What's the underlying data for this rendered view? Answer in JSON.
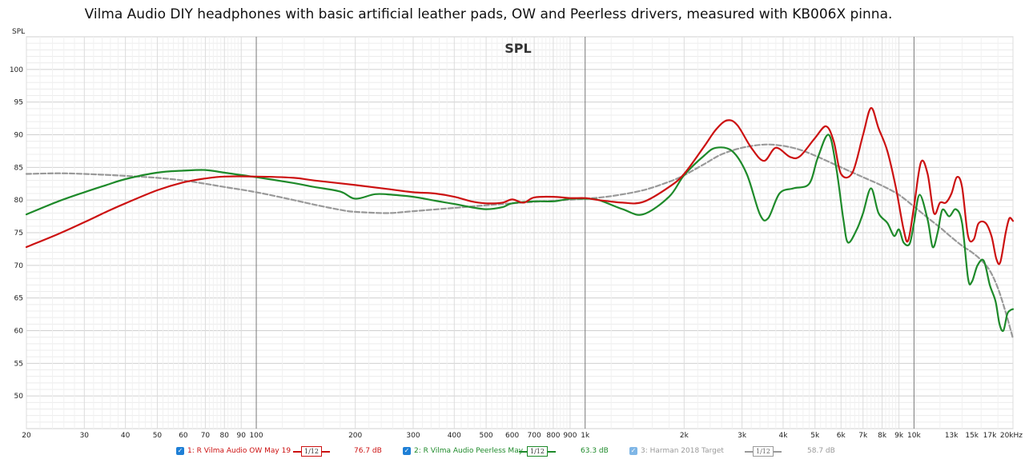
{
  "title": "Vilma Audio DIY headphones with basic artificial leather pads, OW and Peerless drivers, measured with KB006X pinna.",
  "legend": [
    {
      "label": "1: R Vilma Audio OW May 19",
      "smoothing": "1/12",
      "level": "76.7 dB",
      "color": "#cc1111",
      "checkbox_color": "#1e7fd6"
    },
    {
      "label": "2: R Vilma Audio Peerless May",
      "smoothing": "1/12",
      "level": "63.3 dB",
      "color": "#1e8a2a",
      "checkbox_color": "#1e7fd6"
    },
    {
      "label": "3: Harman 2018 Target",
      "smoothing": "1/12",
      "level": "58.7 dB",
      "color": "#999999",
      "checkbox_color": "#7fb6e6"
    }
  ],
  "chart_data": {
    "type": "line",
    "title": "SPL",
    "ylabel": "SPL",
    "xlabel": "",
    "xscale": "log",
    "xlim": [
      20,
      20000
    ],
    "ylim": [
      45,
      105
    ],
    "yticks": [
      50,
      55,
      60,
      65,
      70,
      75,
      80,
      85,
      90,
      95,
      100
    ],
    "xticks": [
      {
        "v": 20,
        "label": "20"
      },
      {
        "v": 30,
        "label": "30"
      },
      {
        "v": 40,
        "label": "40"
      },
      {
        "v": 50,
        "label": "50"
      },
      {
        "v": 60,
        "label": "60"
      },
      {
        "v": 70,
        "label": "70"
      },
      {
        "v": 80,
        "label": "80"
      },
      {
        "v": 90,
        "label": "90"
      },
      {
        "v": 100,
        "label": "100"
      },
      {
        "v": 200,
        "label": "200"
      },
      {
        "v": 300,
        "label": "300"
      },
      {
        "v": 400,
        "label": "400"
      },
      {
        "v": 500,
        "label": "500"
      },
      {
        "v": 600,
        "label": "600"
      },
      {
        "v": 700,
        "label": "700"
      },
      {
        "v": 800,
        "label": "800"
      },
      {
        "v": 900,
        "label": "900"
      },
      {
        "v": 1000,
        "label": "1k"
      },
      {
        "v": 2000,
        "label": "2k"
      },
      {
        "v": 3000,
        "label": "3k"
      },
      {
        "v": 4000,
        "label": "4k"
      },
      {
        "v": 5000,
        "label": "5k"
      },
      {
        "v": 6000,
        "label": "6k"
      },
      {
        "v": 7000,
        "label": "7k"
      },
      {
        "v": 8000,
        "label": "8k"
      },
      {
        "v": 9000,
        "label": "9k"
      },
      {
        "v": 10000,
        "label": "10k"
      },
      {
        "v": 13000,
        "label": "13k"
      },
      {
        "v": 15000,
        "label": "15k"
      },
      {
        "v": 17000,
        "label": "17k"
      },
      {
        "v": 20000,
        "label": "20kHz"
      }
    ],
    "major_x": [
      100,
      1000,
      10000
    ],
    "series": [
      {
        "name": "1: R Vilma Audio OW May 19",
        "color": "#cc1111",
        "dashed": false,
        "points": [
          [
            20,
            72.8
          ],
          [
            25,
            74.8
          ],
          [
            30,
            76.6
          ],
          [
            35,
            78.2
          ],
          [
            40,
            79.5
          ],
          [
            50,
            81.5
          ],
          [
            60,
            82.7
          ],
          [
            70,
            83.3
          ],
          [
            80,
            83.6
          ],
          [
            100,
            83.6
          ],
          [
            130,
            83.4
          ],
          [
            150,
            83.0
          ],
          [
            200,
            82.3
          ],
          [
            250,
            81.7
          ],
          [
            300,
            81.2
          ],
          [
            350,
            81.0
          ],
          [
            400,
            80.5
          ],
          [
            450,
            79.8
          ],
          [
            500,
            79.5
          ],
          [
            560,
            79.6
          ],
          [
            600,
            80.1
          ],
          [
            650,
            79.6
          ],
          [
            700,
            80.4
          ],
          [
            800,
            80.5
          ],
          [
            900,
            80.3
          ],
          [
            1000,
            80.3
          ],
          [
            1100,
            80.0
          ],
          [
            1300,
            79.6
          ],
          [
            1500,
            79.7
          ],
          [
            1800,
            82.0
          ],
          [
            2000,
            84.0
          ],
          [
            2300,
            88.2
          ],
          [
            2500,
            90.8
          ],
          [
            2700,
            92.2
          ],
          [
            2900,
            91.5
          ],
          [
            3200,
            88.0
          ],
          [
            3500,
            86.0
          ],
          [
            3800,
            88.0
          ],
          [
            4200,
            86.6
          ],
          [
            4500,
            86.7
          ],
          [
            5000,
            89.5
          ],
          [
            5400,
            91.3
          ],
          [
            5700,
            89.0
          ],
          [
            6000,
            84.0
          ],
          [
            6500,
            84.2
          ],
          [
            7000,
            90.0
          ],
          [
            7400,
            94.1
          ],
          [
            7800,
            91.0
          ],
          [
            8300,
            87.5
          ],
          [
            8800,
            82.0
          ],
          [
            9300,
            75.5
          ],
          [
            9600,
            73.8
          ],
          [
            10000,
            79.0
          ],
          [
            10500,
            85.8
          ],
          [
            11000,
            84.0
          ],
          [
            11500,
            78.0
          ],
          [
            12000,
            79.6
          ],
          [
            12500,
            79.6
          ],
          [
            13000,
            81.0
          ],
          [
            13500,
            83.5
          ],
          [
            14000,
            82.0
          ],
          [
            14600,
            74.5
          ],
          [
            15200,
            74.0
          ],
          [
            15700,
            76.4
          ],
          [
            16500,
            76.5
          ],
          [
            17200,
            74.5
          ],
          [
            17800,
            71.0
          ],
          [
            18300,
            70.5
          ],
          [
            19000,
            75.0
          ],
          [
            19500,
            77.2
          ],
          [
            20000,
            76.8
          ]
        ]
      },
      {
        "name": "2: R Vilma Audio Peerless May",
        "color": "#1e8a2a",
        "dashed": false,
        "points": [
          [
            20,
            77.8
          ],
          [
            25,
            79.8
          ],
          [
            30,
            81.2
          ],
          [
            35,
            82.3
          ],
          [
            40,
            83.2
          ],
          [
            50,
            84.2
          ],
          [
            60,
            84.5
          ],
          [
            70,
            84.6
          ],
          [
            80,
            84.2
          ],
          [
            100,
            83.5
          ],
          [
            130,
            82.6
          ],
          [
            150,
            82.0
          ],
          [
            180,
            81.3
          ],
          [
            200,
            80.2
          ],
          [
            230,
            80.9
          ],
          [
            260,
            80.8
          ],
          [
            300,
            80.5
          ],
          [
            350,
            79.9
          ],
          [
            400,
            79.4
          ],
          [
            450,
            78.9
          ],
          [
            500,
            78.6
          ],
          [
            560,
            78.9
          ],
          [
            600,
            79.5
          ],
          [
            700,
            79.8
          ],
          [
            800,
            79.8
          ],
          [
            900,
            80.2
          ],
          [
            1000,
            80.2
          ],
          [
            1100,
            80.0
          ],
          [
            1300,
            78.6
          ],
          [
            1500,
            77.8
          ],
          [
            1800,
            80.5
          ],
          [
            2000,
            83.8
          ],
          [
            2300,
            86.8
          ],
          [
            2500,
            88.0
          ],
          [
            2800,
            87.5
          ],
          [
            3100,
            84.0
          ],
          [
            3400,
            77.8
          ],
          [
            3600,
            77.2
          ],
          [
            3900,
            81.0
          ],
          [
            4300,
            81.8
          ],
          [
            4800,
            82.5
          ],
          [
            5100,
            86.5
          ],
          [
            5500,
            90.0
          ],
          [
            5800,
            85.0
          ],
          [
            6100,
            77.0
          ],
          [
            6300,
            73.5
          ],
          [
            6700,
            75.5
          ],
          [
            7000,
            78.0
          ],
          [
            7400,
            81.8
          ],
          [
            7800,
            78.0
          ],
          [
            8300,
            76.5
          ],
          [
            8700,
            74.5
          ],
          [
            9000,
            75.5
          ],
          [
            9300,
            73.5
          ],
          [
            9700,
            73.3
          ],
          [
            10000,
            76.5
          ],
          [
            10400,
            80.8
          ],
          [
            11000,
            77.0
          ],
          [
            11400,
            72.8
          ],
          [
            11800,
            75.0
          ],
          [
            12200,
            78.5
          ],
          [
            12800,
            77.5
          ],
          [
            13400,
            78.6
          ],
          [
            14000,
            76.5
          ],
          [
            14600,
            68.0
          ],
          [
            15000,
            67.5
          ],
          [
            15600,
            70.0
          ],
          [
            16300,
            70.7
          ],
          [
            17000,
            67.0
          ],
          [
            17700,
            64.5
          ],
          [
            18200,
            61.0
          ],
          [
            18700,
            60.0
          ],
          [
            19200,
            62.5
          ],
          [
            19600,
            63.1
          ],
          [
            20000,
            63.3
          ]
        ]
      },
      {
        "name": "3: Harman 2018 Target",
        "color": "#999999",
        "dashed": true,
        "points": [
          [
            20,
            84.0
          ],
          [
            25,
            84.1
          ],
          [
            30,
            84.0
          ],
          [
            40,
            83.7
          ],
          [
            50,
            83.4
          ],
          [
            60,
            83.0
          ],
          [
            70,
            82.5
          ],
          [
            80,
            82.0
          ],
          [
            100,
            81.2
          ],
          [
            130,
            80.0
          ],
          [
            150,
            79.3
          ],
          [
            180,
            78.5
          ],
          [
            200,
            78.2
          ],
          [
            250,
            78.0
          ],
          [
            300,
            78.3
          ],
          [
            400,
            78.8
          ],
          [
            500,
            79.2
          ],
          [
            600,
            79.5
          ],
          [
            800,
            79.9
          ],
          [
            1000,
            80.2
          ],
          [
            1200,
            80.6
          ],
          [
            1500,
            81.5
          ],
          [
            1800,
            82.8
          ],
          [
            2000,
            83.8
          ],
          [
            2300,
            85.5
          ],
          [
            2600,
            87.0
          ],
          [
            3000,
            88.0
          ],
          [
            3500,
            88.5
          ],
          [
            4000,
            88.3
          ],
          [
            4500,
            87.7
          ],
          [
            5000,
            86.8
          ],
          [
            6000,
            85.0
          ],
          [
            7000,
            83.5
          ],
          [
            8000,
            82.2
          ],
          [
            9000,
            80.8
          ],
          [
            10000,
            79.0
          ],
          [
            11000,
            77.3
          ],
          [
            12000,
            75.8
          ],
          [
            13000,
            74.3
          ],
          [
            14000,
            73.0
          ],
          [
            15000,
            72.0
          ],
          [
            16000,
            70.8
          ],
          [
            17000,
            69.2
          ],
          [
            18000,
            66.5
          ],
          [
            19000,
            62.8
          ],
          [
            20000,
            58.8
          ]
        ]
      }
    ]
  }
}
